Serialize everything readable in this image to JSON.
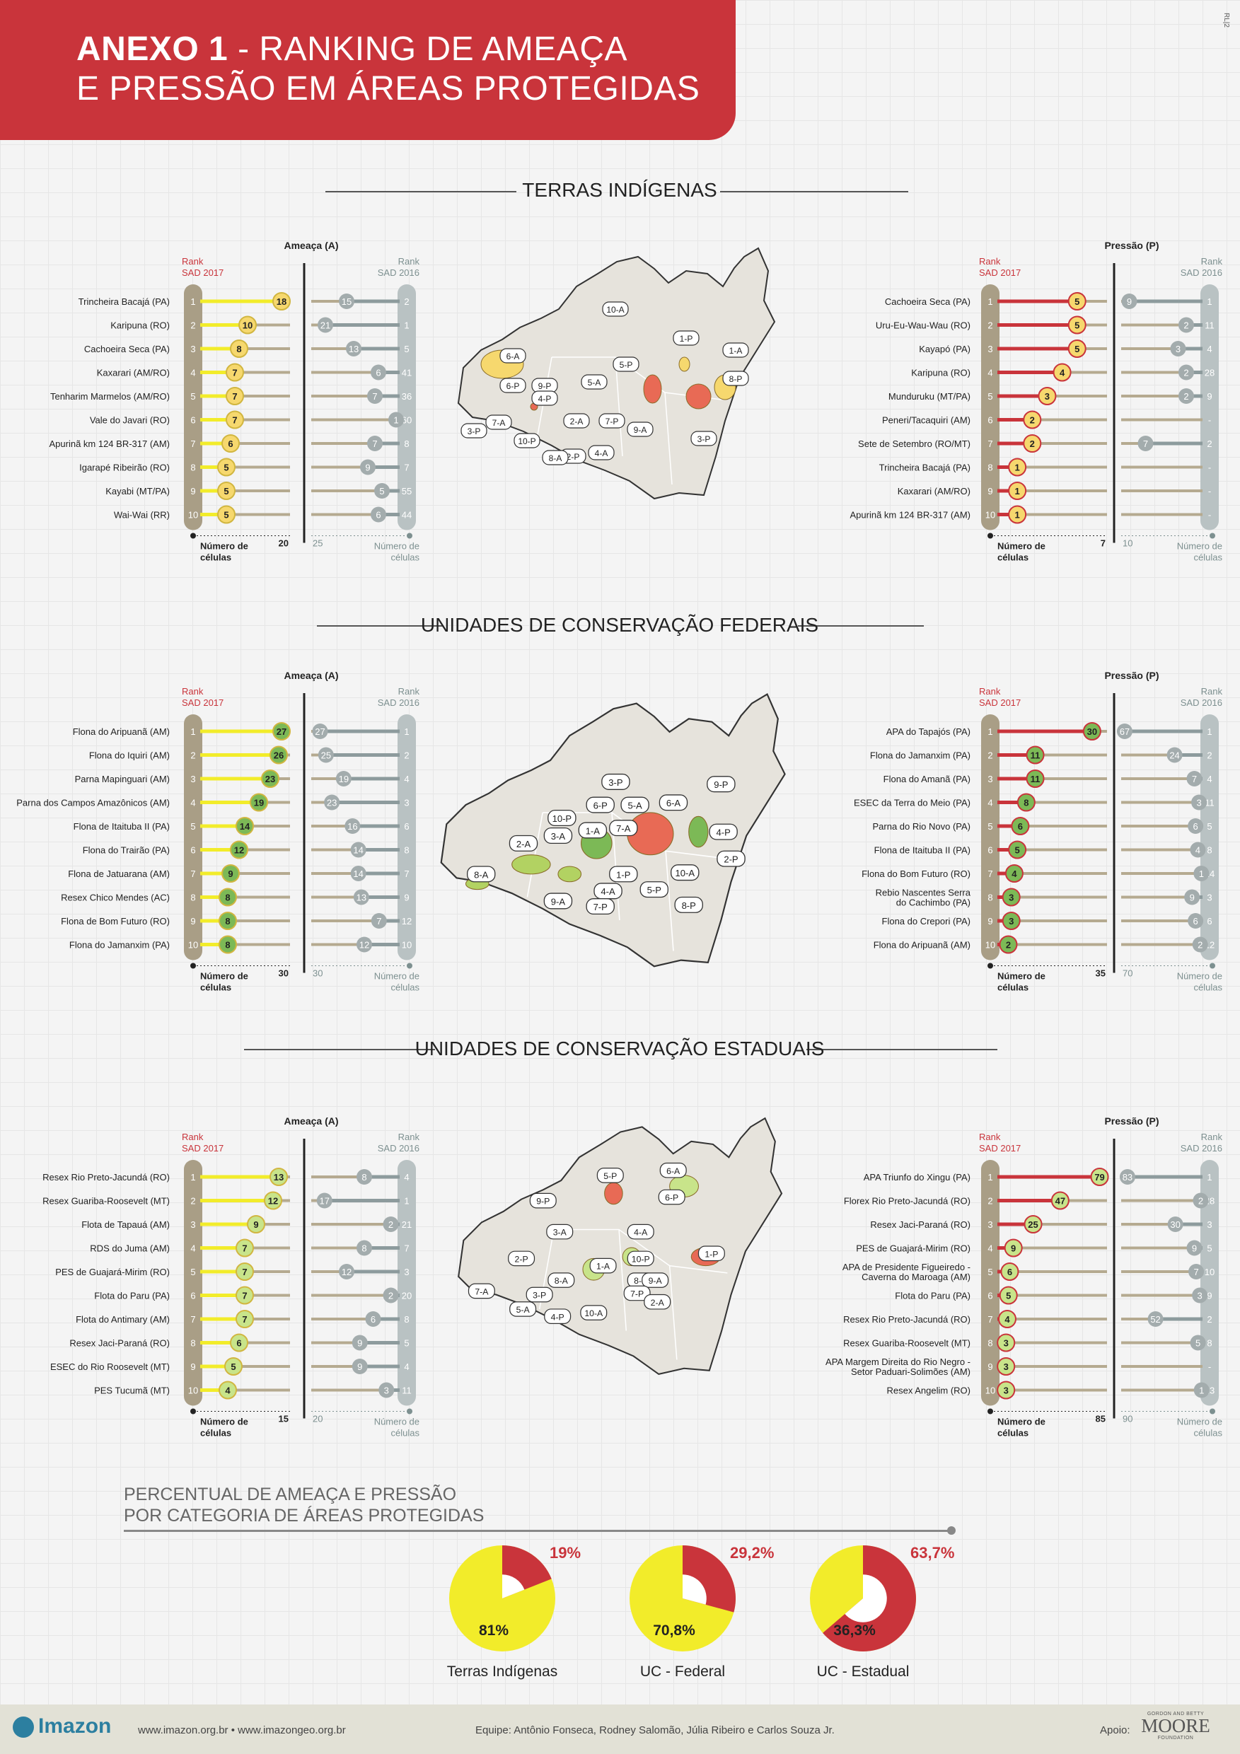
{
  "header": {
    "title_bold": "ANEXO 1",
    "title_rest": " - RANKING DE AMEAÇA",
    "title_line2": "E PRESSÃO EM ÁREAS PROTEGIDAS",
    "corner_code": "RL|2"
  },
  "colors": {
    "red": "#c9343b",
    "yellow": "#f2ec2a",
    "ti_circle": "#f6d86e",
    "fed_circle": "#7cb956",
    "est_circle": "#c8e48a",
    "gray_circle": "#a3acad",
    "track": "#b5aa90",
    "rank_col": "#a99e86",
    "rank16_col": "#b9c2c3"
  },
  "sections": [
    {
      "title": "TERRAS INDÍGENAS"
    },
    {
      "title": "UNIDADES DE CONSERVAÇÃO FEDERAIS"
    },
    {
      "title": "UNIDADES DE CONSERVAÇÃO ESTADUAIS"
    }
  ],
  "chart_data": [
    {
      "type": "dot-rank",
      "section": "TERRAS INDÍGENAS",
      "title": "Ameaça (A)",
      "rank2017_label": "Rank SAD 2017",
      "rank2016_label": "Rank SAD 2016",
      "axis_label": "Número de células",
      "axis2017_max": "20",
      "axis2016_max": "25",
      "style": "ti",
      "rows": [
        {
          "rank": "1",
          "name": "Trincheira Bacajá (PA)",
          "v2017": 18,
          "v2016": 15,
          "r2016": "2"
        },
        {
          "rank": "2",
          "name": "Karipuna (RO)",
          "v2017": 10,
          "v2016": 21,
          "r2016": "1"
        },
        {
          "rank": "3",
          "name": "Cachoeira Seca (PA)",
          "v2017": 8,
          "v2016": 13,
          "r2016": "5"
        },
        {
          "rank": "4",
          "name": "Kaxarari (AM/RO)",
          "v2017": 7,
          "v2016": 6,
          "r2016": "41"
        },
        {
          "rank": "5",
          "name": "Tenharim Marmelos (AM/RO)",
          "v2017": 7,
          "v2016": 7,
          "r2016": "36"
        },
        {
          "rank": "6",
          "name": "Vale do Javari (RO)",
          "v2017": 7,
          "v2016": 1,
          "r2016": "60"
        },
        {
          "rank": "7",
          "name": "Apurinã km 124 BR-317 (AM)",
          "v2017": 6,
          "v2016": 7,
          "r2016": "8"
        },
        {
          "rank": "8",
          "name": "Igarapé Ribeirão (RO)",
          "v2017": 5,
          "v2016": 9,
          "r2016": "7"
        },
        {
          "rank": "9",
          "name": "Kayabi (MT/PA)",
          "v2017": 5,
          "v2016": 5,
          "r2016": "55"
        },
        {
          "rank": "10",
          "name": "Wai-Wai (RR)",
          "v2017": 5,
          "v2016": 6,
          "r2016": "44"
        }
      ]
    },
    {
      "type": "dot-rank",
      "section": "TERRAS INDÍGENAS",
      "title": "Pressão (P)",
      "rank2017_label": "Rank SAD 2017",
      "rank2016_label": "Rank SAD 2016",
      "axis_label": "Número de células",
      "axis2017_max": "7",
      "axis2016_max": "10",
      "style": "ti",
      "rows": [
        {
          "rank": "1",
          "name": "Cachoeira Seca (PA)",
          "v2017": 5,
          "v2016": 9,
          "r2016": "1"
        },
        {
          "rank": "2",
          "name": "Uru-Eu-Wau-Wau (RO)",
          "v2017": 5,
          "v2016": 2,
          "r2016": "11"
        },
        {
          "rank": "3",
          "name": "Kayapó (PA)",
          "v2017": 5,
          "v2016": 3,
          "r2016": "4"
        },
        {
          "rank": "4",
          "name": "Karipuna (RO)",
          "v2017": 4,
          "v2016": 2,
          "r2016": "28"
        },
        {
          "rank": "5",
          "name": "Munduruku (MT/PA)",
          "v2017": 3,
          "v2016": 2,
          "r2016": "9"
        },
        {
          "rank": "6",
          "name": "Peneri/Tacaquiri (AM)",
          "v2017": 2,
          "v2016": null,
          "r2016": "-"
        },
        {
          "rank": "7",
          "name": "Sete de Setembro (RO/MT)",
          "v2017": 2,
          "v2016": 7,
          "r2016": "2"
        },
        {
          "rank": "8",
          "name": "Trincheira Bacajá (PA)",
          "v2017": 1,
          "v2016": null,
          "r2016": "-"
        },
        {
          "rank": "9",
          "name": "Kaxarari (AM/RO)",
          "v2017": 1,
          "v2016": null,
          "r2016": "-"
        },
        {
          "rank": "10",
          "name": "Apurinã km 124 BR-317 (AM)",
          "v2017": 1,
          "v2016": null,
          "r2016": "-"
        }
      ]
    },
    {
      "type": "dot-rank",
      "section": "UNIDADES DE CONSERVAÇÃO FEDERAIS",
      "title": "Ameaça (A)",
      "rank2017_label": "Rank SAD 2017",
      "rank2016_label": "Rank SAD 2016",
      "axis_label": "Número de células",
      "axis2017_max": "30",
      "axis2016_max": "30",
      "style": "fed",
      "rows": [
        {
          "rank": "1",
          "name": "Flona do Aripuanã (AM)",
          "v2017": 27,
          "v2016": 27,
          "r2016": "1"
        },
        {
          "rank": "2",
          "name": "Flona do Iquiri (AM)",
          "v2017": 26,
          "v2016": 25,
          "r2016": "2"
        },
        {
          "rank": "3",
          "name": "Parna Mapinguari (AM)",
          "v2017": 23,
          "v2016": 19,
          "r2016": "4"
        },
        {
          "rank": "4",
          "name": "Parna dos Campos Amazônicos (AM)",
          "v2017": 19,
          "v2016": 23,
          "r2016": "3"
        },
        {
          "rank": "5",
          "name": "Flona de Itaituba II (PA)",
          "v2017": 14,
          "v2016": 16,
          "r2016": "6"
        },
        {
          "rank": "6",
          "name": "Flona do Trairão (PA)",
          "v2017": 12,
          "v2016": 14,
          "r2016": "8"
        },
        {
          "rank": "7",
          "name": "Flona de Jatuarana (AM)",
          "v2017": 9,
          "v2016": 14,
          "r2016": "7"
        },
        {
          "rank": "8",
          "name": "Resex Chico Mendes (AC)",
          "v2017": 8,
          "v2016": 13,
          "r2016": "9"
        },
        {
          "rank": "9",
          "name": "Flona de Bom Futuro (RO)",
          "v2017": 8,
          "v2016": 7,
          "r2016": "12"
        },
        {
          "rank": "10",
          "name": "Flona do Jamanxim (PA)",
          "v2017": 8,
          "v2016": 12,
          "r2016": "10"
        }
      ]
    },
    {
      "type": "dot-rank",
      "section": "UNIDADES DE CONSERVAÇÃO FEDERAIS",
      "title": "Pressão (P)",
      "rank2017_label": "Rank SAD 2017",
      "rank2016_label": "Rank SAD 2016",
      "axis_label": "Número de células",
      "axis2017_max": "35",
      "axis2016_max": "70",
      "style": "fed",
      "rows": [
        {
          "rank": "1",
          "name": "APA do Tapajós (PA)",
          "v2017": 30,
          "v2016": 67,
          "r2016": "1"
        },
        {
          "rank": "2",
          "name": "Flona do Jamanxim (PA)",
          "v2017": 11,
          "v2016": 24,
          "r2016": "2"
        },
        {
          "rank": "3",
          "name": "Flona do Amanã (PA)",
          "v2017": 11,
          "v2016": 7,
          "r2016": "4"
        },
        {
          "rank": "4",
          "name": "ESEC da Terra do Meio (PA)",
          "v2017": 8,
          "v2016": 3,
          "r2016": "11"
        },
        {
          "rank": "5",
          "name": "Parna do Rio Novo (PA)",
          "v2017": 6,
          "v2016": 6,
          "r2016": "5"
        },
        {
          "rank": "6",
          "name": "Flona de Itaituba II (PA)",
          "v2017": 5,
          "v2016": 4,
          "r2016": "8"
        },
        {
          "rank": "7",
          "name": "Flona do Bom Futuro (RO)",
          "v2017": 4,
          "v2016": 1,
          "r2016": "14"
        },
        {
          "rank": "8",
          "name": "Rebio Nascentes Serra do Cachimbo (PA)",
          "v2017": 3,
          "v2016": 9,
          "r2016": "3"
        },
        {
          "rank": "9",
          "name": "Flona do Crepori (PA)",
          "v2017": 3,
          "v2016": 6,
          "r2016": "6"
        },
        {
          "rank": "10",
          "name": "Flona do Aripuanã (AM)",
          "v2017": 2,
          "v2016": 2,
          "r2016": "12"
        }
      ]
    },
    {
      "type": "dot-rank",
      "section": "UNIDADES DE CONSERVAÇÃO ESTADUAIS",
      "title": "Ameaça (A)",
      "rank2017_label": "Rank SAD 2017",
      "rank2016_label": "Rank SAD 2016",
      "axis_label": "Número de células",
      "axis2017_max": "15",
      "axis2016_max": "20",
      "style": "est",
      "rows": [
        {
          "rank": "1",
          "name": "Resex Rio Preto-Jacundá (RO)",
          "v2017": 13,
          "v2016": 8,
          "r2016": "4"
        },
        {
          "rank": "2",
          "name": "Resex Guariba-Roosevelt (MT)",
          "v2017": 12,
          "v2016": 17,
          "r2016": "1"
        },
        {
          "rank": "3",
          "name": "Flota de Tapauá (AM)",
          "v2017": 9,
          "v2016": 2,
          "r2016": "21"
        },
        {
          "rank": "4",
          "name": "RDS do Juma (AM)",
          "v2017": 7,
          "v2016": 8,
          "r2016": "7"
        },
        {
          "rank": "5",
          "name": "PES de Guajará-Mirim (RO)",
          "v2017": 7,
          "v2016": 12,
          "r2016": "3"
        },
        {
          "rank": "6",
          "name": "Flota do Paru (PA)",
          "v2017": 7,
          "v2016": 2,
          "r2016": "20"
        },
        {
          "rank": "7",
          "name": "Flota do Antimary (AM)",
          "v2017": 7,
          "v2016": 6,
          "r2016": "8"
        },
        {
          "rank": "8",
          "name": "Resex Jaci-Paraná (RO)",
          "v2017": 6,
          "v2016": 9,
          "r2016": "5"
        },
        {
          "rank": "9",
          "name": "ESEC do Rio Roosevelt (MT)",
          "v2017": 5,
          "v2016": 9,
          "r2016": "4"
        },
        {
          "rank": "10",
          "name": "PES Tucumã (MT)",
          "v2017": 4,
          "v2016": 3,
          "r2016": "11"
        }
      ]
    },
    {
      "type": "dot-rank",
      "section": "UNIDADES DE CONSERVAÇÃO ESTADUAIS",
      "title": "Pressão (P)",
      "rank2017_label": "Rank SAD 2017",
      "rank2016_label": "Rank SAD 2016",
      "axis_label": "Número de células",
      "axis2017_max": "85",
      "axis2016_max": "90",
      "style": "est",
      "rows": [
        {
          "rank": "1",
          "name": "APA Triunfo do Xingu (PA)",
          "v2017": 79,
          "v2016": 83,
          "r2016": "1"
        },
        {
          "rank": "2",
          "name": "Florex Rio Preto-Jacundá (RO)",
          "v2017": 47,
          "v2016": 2,
          "r2016": "28"
        },
        {
          "rank": "3",
          "name": "Resex Jaci-Paraná (RO)",
          "v2017": 25,
          "v2016": 30,
          "r2016": "3"
        },
        {
          "rank": "4",
          "name": "PES de Guajará-Mirim (RO)",
          "v2017": 9,
          "v2016": 9,
          "r2016": "5"
        },
        {
          "rank": "5",
          "name": "APA de Presidente Figueiredo - Caverna do Maroaga (AM)",
          "v2017": 6,
          "v2016": 7,
          "r2016": "10"
        },
        {
          "rank": "6",
          "name": "Flota do Paru (PA)",
          "v2017": 5,
          "v2016": 3,
          "r2016": "9"
        },
        {
          "rank": "7",
          "name": "Resex Rio Preto-Jacundá (RO)",
          "v2017": 4,
          "v2016": 52,
          "r2016": "2"
        },
        {
          "rank": "8",
          "name": "Resex Guariba-Roosevelt (MT)",
          "v2017": 3,
          "v2016": 5,
          "r2016": "8"
        },
        {
          "rank": "9",
          "name": "APA Margem Direita do Rio Negro - Setor Paduari-Solimões (AM)",
          "v2017": 3,
          "v2016": null,
          "r2016": "-"
        },
        {
          "rank": "10",
          "name": "Resex Angelim (RO)",
          "v2017": 3,
          "v2016": 1,
          "r2016": "13"
        }
      ]
    },
    {
      "type": "pie",
      "title": "PERCENTUAL DE AMEAÇA E PRESSÃO POR CATEGORIA DE ÁREAS PROTEGIDAS",
      "pies": [
        {
          "label": "Terras Indígenas",
          "ameaca": 81,
          "pressao": 19,
          "ameaca_text": "81%",
          "pressao_text": "19%"
        },
        {
          "label": "UC - Federal",
          "ameaca": 70.8,
          "pressao": 29.2,
          "ameaca_text": "70,8%",
          "pressao_text": "29,2%"
        },
        {
          "label": "UC - Estadual",
          "ameaca": 36.3,
          "pressao": 63.7,
          "ameaca_text": "36,3%",
          "pressao_text": "63,7%"
        }
      ]
    }
  ],
  "maps": [
    {
      "labels": [
        "10-A",
        "1-P",
        "3-P",
        "1-A",
        "6-A",
        "5-P",
        "8-P",
        "6-P",
        "9-P",
        "5-A",
        "4-P",
        "9-A",
        "7-A",
        "2-A",
        "7-P",
        "3-P",
        "10-P",
        "4-A",
        "2-P",
        "8-A"
      ]
    },
    {
      "labels": [
        "3-P",
        "9-P",
        "6-P",
        "5-A",
        "6-A",
        "10-P",
        "1-A",
        "7-A",
        "4-P",
        "2-A",
        "3-A",
        "2-P",
        "8-A",
        "1-P",
        "10-A",
        "4-A",
        "5-P",
        "9-A",
        "7-P",
        "8-P"
      ]
    },
    {
      "labels": [
        "5-P",
        "6-A",
        "9-P",
        "6-P",
        "3-A",
        "4-A",
        "2-P",
        "10-P",
        "1-P",
        "1-A",
        "8-P",
        "8-A",
        "9-A",
        "7-A",
        "3-P",
        "7-P",
        "2-A",
        "5-A",
        "4-P",
        "10-A"
      ]
    }
  ],
  "pct_title_1": "PERCENTUAL DE AMEAÇA E PRESSÃO",
  "pct_title_2": "POR CATEGORIA DE ÁREAS PROTEGIDAS",
  "footer": {
    "logo": "Imazon",
    "site": "www.imazon.org.br • www.imazongeo.org.br",
    "team": "Equipe: Antônio Fonseca, Rodney Salomão, Júlia Ribeiro e Carlos Souza Jr.",
    "apoio": "Apoio:",
    "moore_small": "GORDON AND BETTY",
    "moore_big": "MOORE",
    "moore_found": "FOUNDATION"
  }
}
